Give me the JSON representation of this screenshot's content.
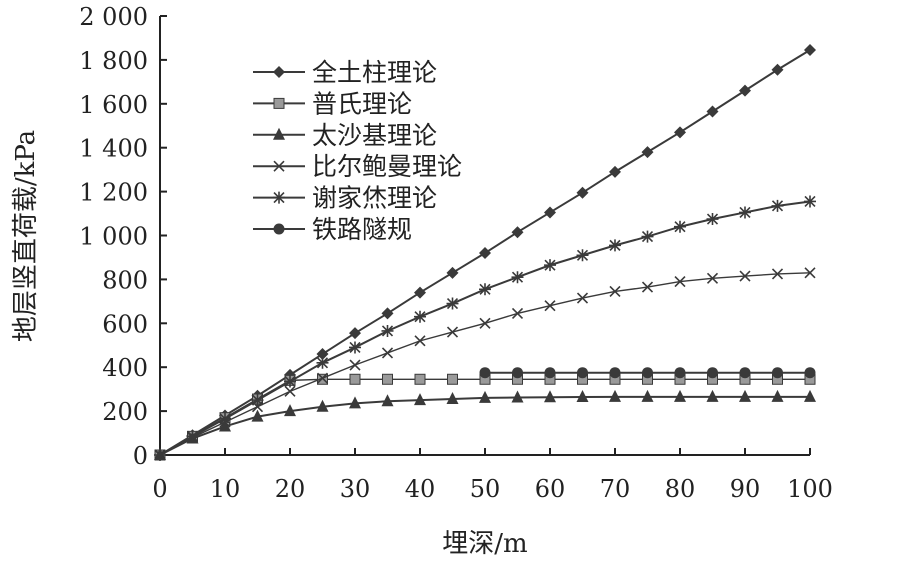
{
  "chart_data": {
    "type": "line",
    "title": "",
    "xlabel": "埋深/m",
    "ylabel": "地层竖直荷载/kPa",
    "xlim": [
      0,
      100
    ],
    "ylim": [
      0,
      2000
    ],
    "x_ticks": [
      0,
      10,
      20,
      30,
      40,
      50,
      60,
      70,
      80,
      90,
      100
    ],
    "x_tick_labels": [
      "0",
      "10",
      "20",
      "30",
      "40",
      "50",
      "60",
      "70",
      "80",
      "90",
      "100"
    ],
    "y_ticks": [
      0,
      200,
      400,
      600,
      800,
      1000,
      1200,
      1400,
      1600,
      1800,
      2000
    ],
    "y_tick_labels": [
      "0",
      "200",
      "400",
      "600",
      "800",
      "1 000",
      "1 200",
      "1 400",
      "1 600",
      "1 800",
      "2 000"
    ],
    "grid": false,
    "legend_position": "top-left",
    "series": [
      {
        "name": "全土柱理论",
        "marker": "diamond",
        "x": [
          0,
          5,
          10,
          15,
          20,
          25,
          30,
          35,
          40,
          45,
          50,
          55,
          60,
          65,
          70,
          75,
          80,
          85,
          90,
          95,
          100
        ],
        "values": [
          0,
          90,
          180,
          270,
          365,
          460,
          555,
          645,
          740,
          830,
          920,
          1015,
          1105,
          1195,
          1290,
          1380,
          1470,
          1565,
          1660,
          1755,
          1845
        ]
      },
      {
        "name": "普氏理论",
        "marker": "square",
        "x": [
          0,
          5,
          10,
          15,
          20,
          25,
          30,
          35,
          40,
          45,
          50,
          55,
          60,
          65,
          70,
          75,
          80,
          85,
          90,
          95,
          100
        ],
        "values": [
          0,
          85,
          170,
          255,
          340,
          345,
          345,
          345,
          345,
          345,
          345,
          345,
          345,
          345,
          345,
          345,
          345,
          345,
          345,
          345,
          345
        ]
      },
      {
        "name": "太沙基理论",
        "marker": "triangle",
        "x": [
          0,
          5,
          10,
          15,
          20,
          25,
          30,
          35,
          40,
          45,
          50,
          55,
          60,
          65,
          70,
          75,
          80,
          85,
          90,
          95,
          100
        ],
        "values": [
          0,
          75,
          130,
          175,
          200,
          220,
          235,
          245,
          250,
          255,
          260,
          262,
          263,
          264,
          265,
          265,
          265,
          265,
          265,
          265,
          265
        ]
      },
      {
        "name": "比尔鲍曼理论",
        "marker": "x",
        "x": [
          0,
          5,
          10,
          15,
          20,
          25,
          30,
          35,
          40,
          45,
          50,
          55,
          60,
          65,
          70,
          75,
          80,
          85,
          90,
          95,
          100
        ],
        "values": [
          0,
          80,
          150,
          220,
          290,
          350,
          410,
          465,
          520,
          560,
          600,
          645,
          680,
          715,
          745,
          765,
          790,
          805,
          815,
          825,
          830
        ]
      },
      {
        "name": "谢家烋理论",
        "marker": "star",
        "x": [
          0,
          5,
          10,
          15,
          20,
          25,
          30,
          35,
          40,
          45,
          50,
          55,
          60,
          65,
          70,
          75,
          80,
          85,
          90,
          95,
          100
        ],
        "values": [
          0,
          85,
          165,
          250,
          335,
          420,
          490,
          565,
          630,
          690,
          755,
          810,
          865,
          910,
          955,
          995,
          1040,
          1075,
          1105,
          1135,
          1155
        ]
      },
      {
        "name": "铁路隧规",
        "marker": "circle",
        "x": [
          50,
          55,
          60,
          65,
          70,
          75,
          80,
          85,
          90,
          95,
          100
        ],
        "values": [
          375,
          375,
          375,
          375,
          375,
          375,
          375,
          375,
          375,
          375,
          375
        ]
      }
    ]
  }
}
